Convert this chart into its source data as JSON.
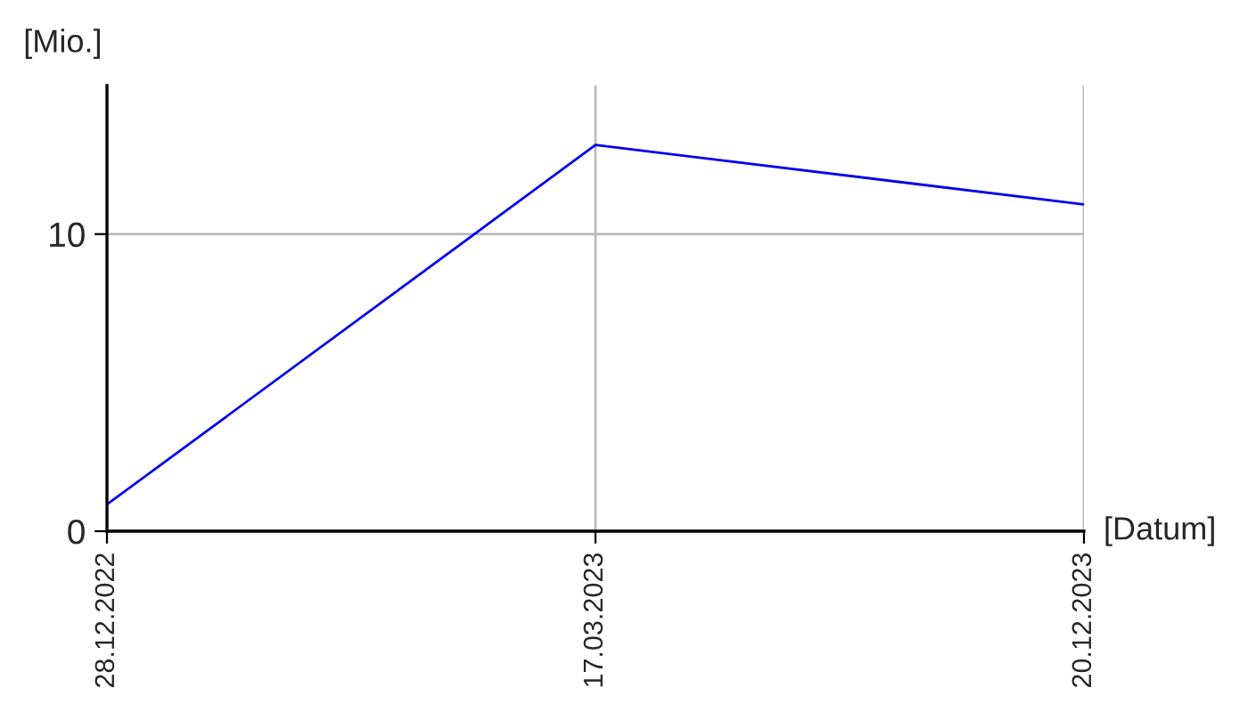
{
  "chart_data": {
    "type": "line",
    "ylabel": "[Mio.]",
    "xlabel": "[Datum]",
    "categories": [
      "28.12.2022",
      "17.03.2023",
      "20.12.2023"
    ],
    "series": [
      {
        "color": "#0000ee",
        "values": [
          0.9,
          13,
          11
        ]
      }
    ],
    "ylim": [
      0,
      15
    ],
    "yticks": [
      0,
      10
    ],
    "grid": true,
    "marker": "none",
    "line_style": "solid"
  }
}
